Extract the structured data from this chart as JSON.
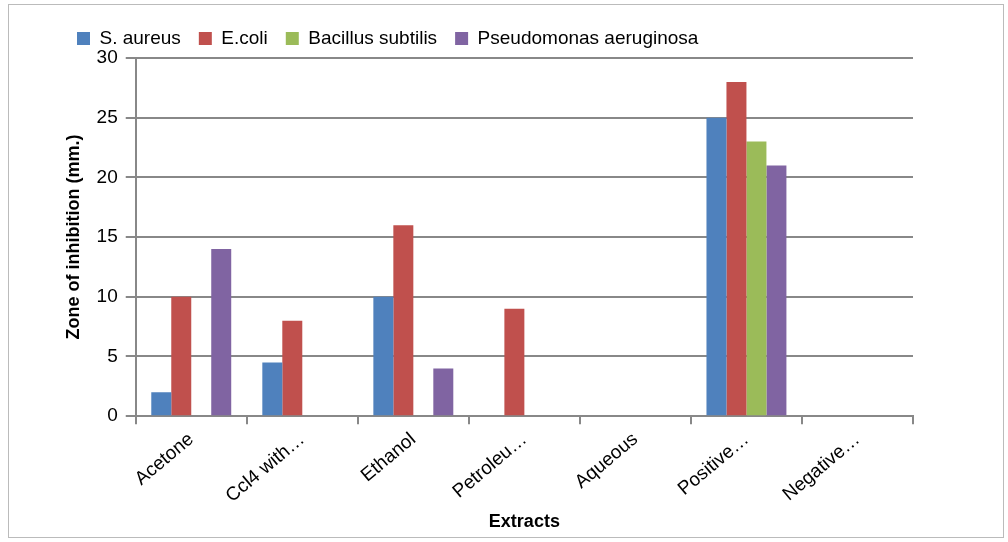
{
  "chart_data": {
    "type": "bar",
    "xlabel": "Extracts",
    "ylabel": "Zone of inhibition (mm.)",
    "categories": [
      "Acetone",
      "Ccl4 with…",
      "Ethanol",
      "Petroleu…",
      "Aqueous",
      "Positive…",
      "Negative…"
    ],
    "series": [
      {
        "name": "S. aureus",
        "color": "#4f81bd",
        "values": [
          2,
          4.5,
          10,
          0,
          0,
          25,
          0
        ]
      },
      {
        "name": "E.coli",
        "color": "#c0504d",
        "values": [
          10,
          8,
          16,
          9,
          0,
          28,
          0
        ]
      },
      {
        "name": "Bacillus subtilis",
        "color": "#9bbb59",
        "values": [
          0,
          0,
          0,
          0,
          0,
          23,
          0
        ]
      },
      {
        "name": "Pseudomonas aeruginosa",
        "color": "#8064a2",
        "values": [
          14,
          0,
          4,
          0,
          0,
          21,
          0
        ]
      }
    ],
    "ylim": [
      0,
      30
    ],
    "yticks": [
      0,
      5,
      10,
      15,
      20,
      25,
      30
    ],
    "grid": "y",
    "legend": "top"
  }
}
